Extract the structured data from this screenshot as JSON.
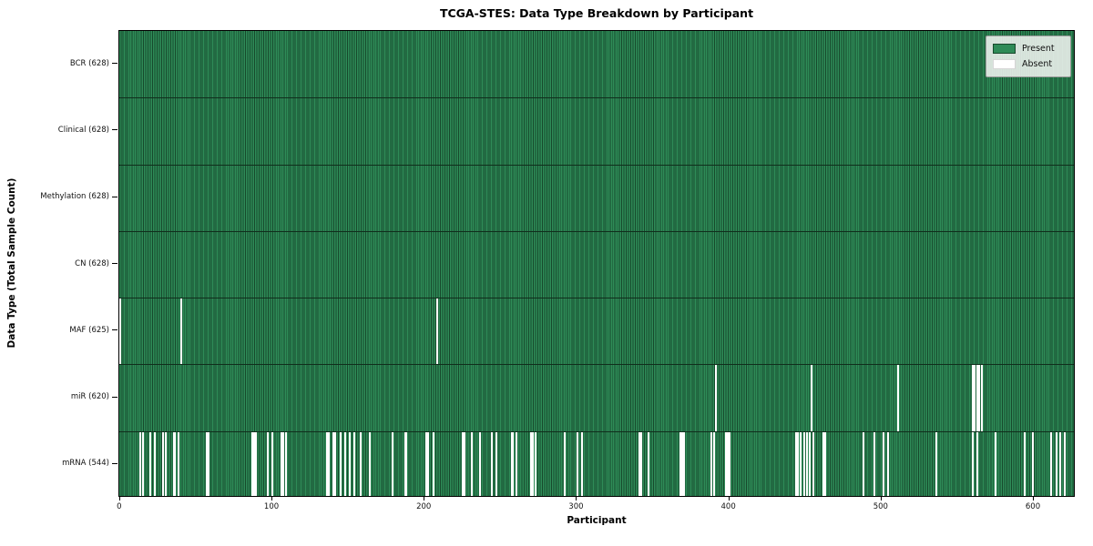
{
  "chart_data": {
    "type": "heatmap",
    "title": "TCGA-STES: Data Type Breakdown by Participant",
    "xlabel": "Participant",
    "ylabel": "Data Type (Total Sample Count)",
    "x_ticks": [
      0,
      100,
      200,
      300,
      400,
      500,
      600
    ],
    "x_range": [
      0,
      628
    ],
    "n_participants": 628,
    "grid": false,
    "legend": {
      "position": "upper-right",
      "entries": [
        {
          "label": "Present",
          "color": "#2e8b57"
        },
        {
          "label": "Absent",
          "color": "#ffffff"
        }
      ]
    },
    "colors": {
      "present": "#2e8b57",
      "present_edge": "#17492c",
      "absent": "#ffffff",
      "row_divider": "#102e1c",
      "plot_border": "#000000",
      "background": "#ffffff"
    },
    "rows": [
      {
        "data_type": "BCR",
        "label": "BCR (628)",
        "present_count": 628,
        "absent_count": 0,
        "absent_participants": []
      },
      {
        "data_type": "Clinical",
        "label": "Clinical (628)",
        "present_count": 628,
        "absent_count": 0,
        "absent_participants": []
      },
      {
        "data_type": "Methylation",
        "label": "Methylation (628)",
        "present_count": 628,
        "absent_count": 0,
        "absent_participants": []
      },
      {
        "data_type": "CN",
        "label": "CN (628)",
        "present_count": 628,
        "absent_count": 0,
        "absent_participants": []
      },
      {
        "data_type": "MAF",
        "label": "MAF (625)",
        "present_count": 625,
        "absent_count": 3,
        "absent_participants": [
          0,
          40,
          208
        ]
      },
      {
        "data_type": "miR",
        "label": "miR (620)",
        "present_count": 620,
        "absent_count": 8,
        "absent_participants": [
          391,
          454,
          511,
          560,
          561,
          563,
          564,
          566
        ]
      },
      {
        "data_type": "mRNA",
        "label": "mRNA (544)",
        "present_count": 544,
        "absent_count": 84,
        "absent_participants": [
          13,
          15,
          20,
          23,
          28,
          30,
          35,
          36,
          38,
          57,
          58,
          87,
          88,
          89,
          97,
          100,
          106,
          107,
          109,
          136,
          137,
          140,
          141,
          145,
          148,
          151,
          154,
          158,
          164,
          179,
          187,
          188,
          201,
          202,
          206,
          225,
          226,
          231,
          236,
          244,
          247,
          257,
          258,
          260,
          270,
          271,
          273,
          292,
          300,
          303,
          341,
          342,
          347,
          368,
          369,
          370,
          388,
          390,
          398,
          399,
          400,
          444,
          445,
          447,
          449,
          451,
          453,
          455,
          462,
          463,
          488,
          495,
          501,
          504,
          536,
          560,
          563,
          575,
          594,
          599,
          611,
          615,
          617,
          620
        ]
      }
    ]
  }
}
